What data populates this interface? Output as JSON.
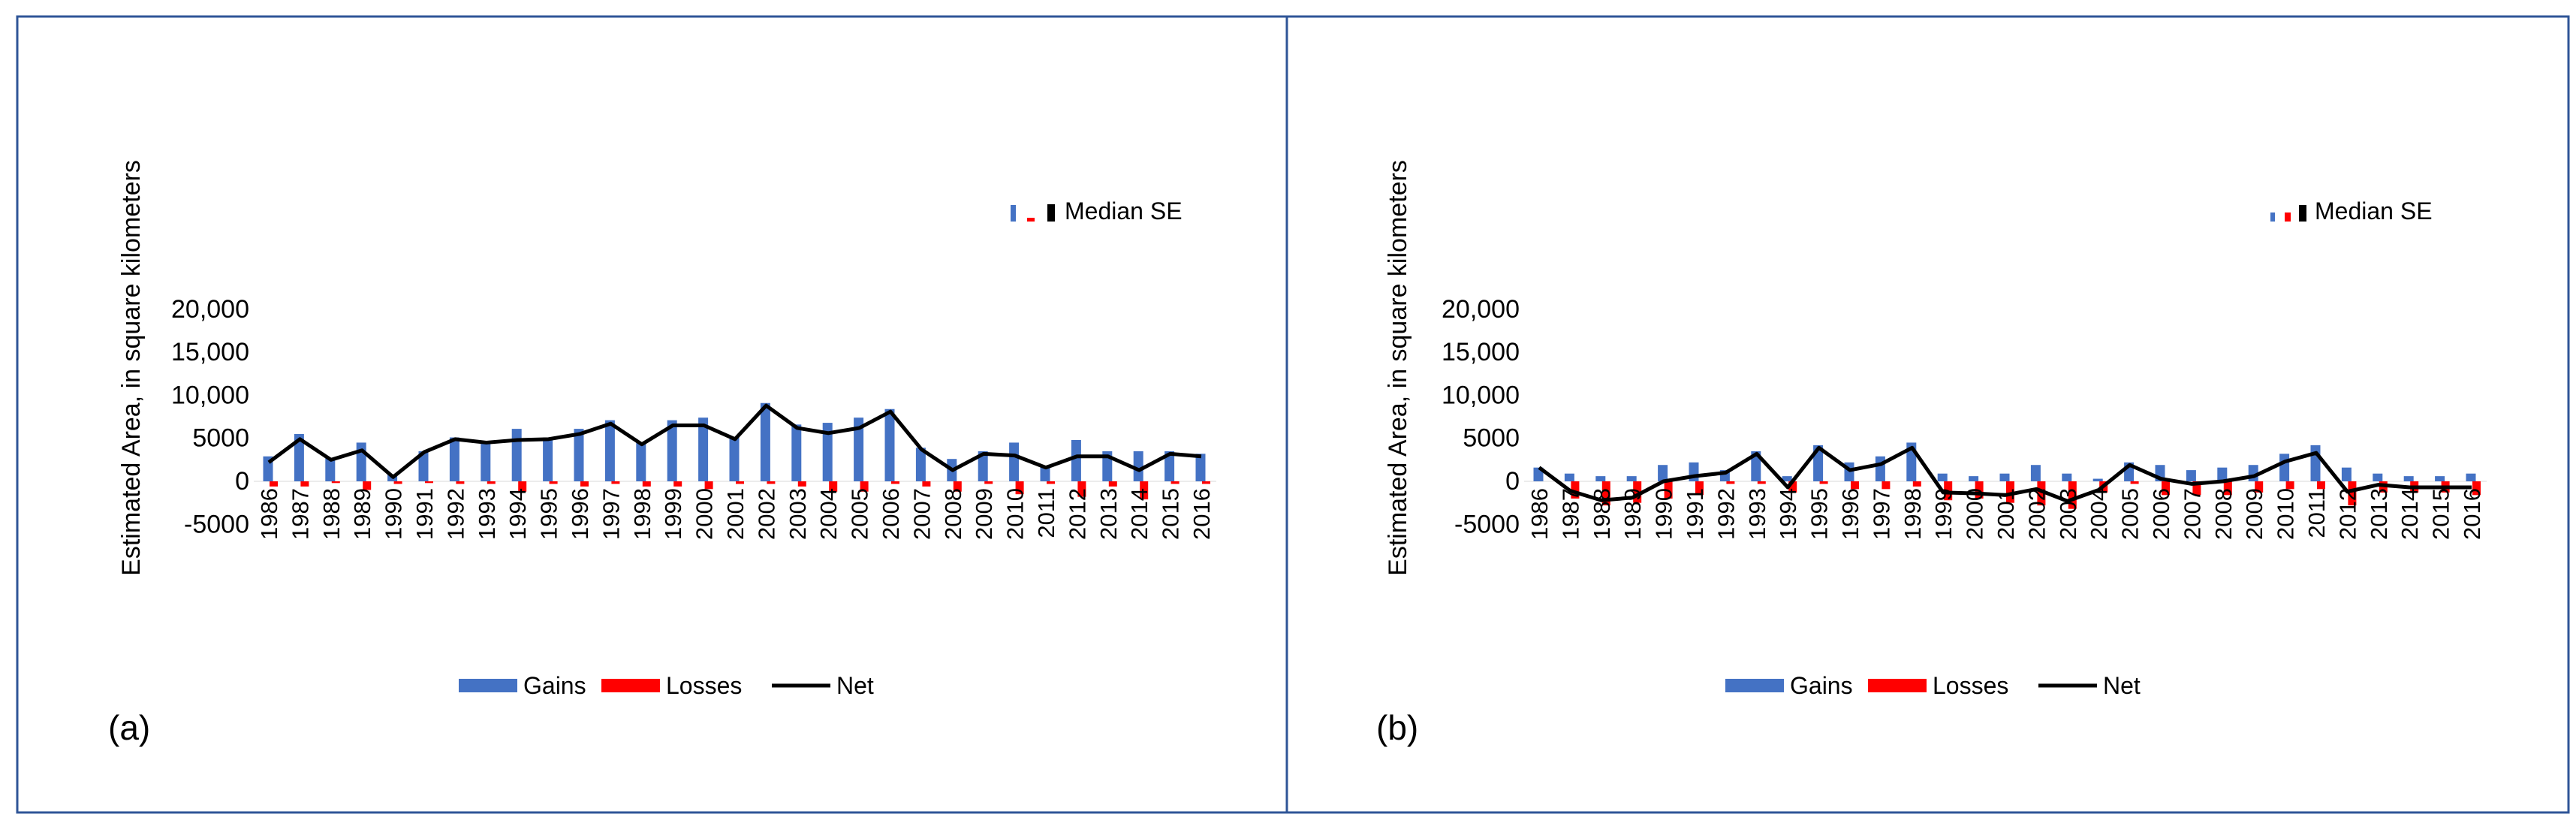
{
  "colors": {
    "gains": "#4472C4",
    "losses": "#FF0000",
    "net": "#000000",
    "frame": "#2F5597"
  },
  "chart_data": [
    {
      "type": "bar",
      "panel_label": "(a)",
      "ylabel": "Estimated Area, in square kilometers",
      "ylim": [
        -5000,
        20000
      ],
      "yticks": [
        20000,
        15000,
        10000,
        5000,
        0,
        -5000
      ],
      "ytick_labels": [
        "20,000",
        "15,000",
        "10,000",
        "5000",
        "0",
        "-5000"
      ],
      "categories": [
        "1986",
        "1987",
        "1988",
        "1989",
        "1990",
        "1991",
        "1992",
        "1993",
        "1994",
        "1995",
        "1996",
        "1997",
        "1998",
        "1999",
        "2000",
        "2001",
        "2002",
        "2003",
        "2004",
        "2005",
        "2006",
        "2007",
        "2008",
        "2009",
        "2010",
        "2011",
        "2012",
        "2013",
        "2014",
        "2015",
        "2016"
      ],
      "series": [
        {
          "name": "Gains",
          "kind": "bar",
          "values": [
            2900,
            5500,
            2700,
            4500,
            800,
            3500,
            5100,
            4600,
            6100,
            5100,
            6100,
            7100,
            4500,
            7100,
            7400,
            5100,
            9100,
            6600,
            6800,
            7400,
            8400,
            3900,
            2600,
            3500,
            4500,
            1800,
            4800,
            3500,
            3500,
            3500,
            3200
          ]
        },
        {
          "name": "Losses",
          "kind": "bar",
          "values": [
            -600,
            -600,
            -200,
            -1000,
            -300,
            -200,
            -300,
            -300,
            -1200,
            -300,
            -600,
            -300,
            -600,
            -600,
            -900,
            -300,
            -300,
            -600,
            -1200,
            -1200,
            -300,
            -600,
            -1200,
            -300,
            -1500,
            -300,
            -1800,
            -600,
            -2100,
            -300,
            -300
          ]
        },
        {
          "name": "Net",
          "kind": "line",
          "values": [
            2200,
            4900,
            2500,
            3600,
            500,
            3400,
            4900,
            4500,
            4800,
            4900,
            5500,
            6700,
            4300,
            6500,
            6500,
            4900,
            8800,
            6200,
            5600,
            6200,
            8100,
            3700,
            1300,
            3200,
            3000,
            1600,
            2900,
            2900,
            1300,
            3200,
            2900
          ]
        }
      ],
      "legend": [
        "Gains",
        "Losses",
        "Net"
      ],
      "median_se_label": "Median SE",
      "median_se": {
        "Gains": 400,
        "Losses": -200,
        "Net": 450
      }
    },
    {
      "type": "bar",
      "panel_label": "(b)",
      "ylabel": "Estimated Area, in square kilometers",
      "ylim": [
        -5000,
        20000
      ],
      "yticks": [
        20000,
        15000,
        10000,
        5000,
        0,
        -5000
      ],
      "ytick_labels": [
        "20,000",
        "15,000",
        "10,000",
        "5000",
        "0",
        "-5000"
      ],
      "categories": [
        "1986",
        "1987",
        "1988",
        "1989",
        "1990",
        "1991",
        "1992",
        "1993",
        "1994",
        "1995",
        "1996",
        "1997",
        "1998",
        "1999",
        "2000",
        "2001",
        "2002",
        "2003",
        "2004",
        "2005",
        "2006",
        "2007",
        "2008",
        "2009",
        "2010",
        "2011",
        "2012",
        "2013",
        "2014",
        "2015",
        "2016"
      ],
      "series": [
        {
          "name": "Gains",
          "kind": "bar",
          "values": [
            1600,
            900,
            600,
            600,
            1900,
            2200,
            1300,
            3500,
            600,
            4200,
            2200,
            2900,
            4500,
            900,
            600,
            900,
            1900,
            900,
            300,
            2200,
            1900,
            1300,
            1600,
            1900,
            3200,
            4200,
            1600,
            900,
            600,
            600,
            900
          ]
        },
        {
          "name": "Losses",
          "kind": "bar",
          "values": [
            0,
            -2000,
            -2800,
            -2500,
            -2000,
            -1600,
            -300,
            -300,
            -1300,
            -300,
            -900,
            -900,
            -600,
            -2200,
            -2000,
            -2500,
            -2800,
            -3200,
            -1300,
            -300,
            -1600,
            -1600,
            -1600,
            -1300,
            -900,
            -900,
            -2800,
            -1300,
            -1300,
            -1300,
            -1600
          ]
        },
        {
          "name": "Net",
          "kind": "line",
          "values": [
            1600,
            -1100,
            -2200,
            -1900,
            0,
            600,
            1000,
            3200,
            -700,
            3900,
            1300,
            2000,
            3900,
            -1300,
            -1400,
            -1600,
            -900,
            -2300,
            -1000,
            1900,
            300,
            -300,
            0,
            600,
            2300,
            3300,
            -1200,
            -400,
            -700,
            -700,
            -700
          ]
        }
      ],
      "legend": [
        "Gains",
        "Losses",
        "Net"
      ],
      "median_se_label": "Median SE",
      "median_se": {
        "Gains": 300,
        "Losses": -300,
        "Net": 450
      }
    }
  ]
}
